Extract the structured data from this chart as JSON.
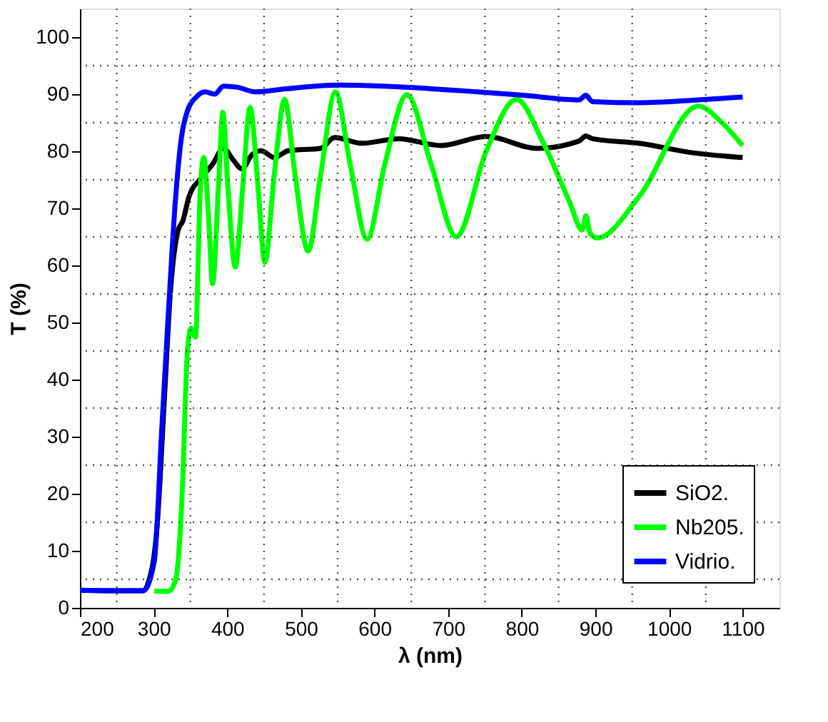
{
  "chart_data": {
    "type": "line",
    "xlabel": "λ (nm)",
    "ylabel": "T (%)",
    "xlim": [
      200,
      1150
    ],
    "ylim": [
      0,
      105
    ],
    "xticks": [
      200,
      300,
      400,
      500,
      600,
      700,
      800,
      900,
      1000,
      1100
    ],
    "yticks": [
      0,
      10,
      20,
      30,
      40,
      50,
      60,
      70,
      80,
      90,
      100
    ],
    "grid": true,
    "legend": "bottom right",
    "line_style": "solid",
    "marker": "none",
    "series": [
      {
        "name": "SiO2.",
        "color": "#000000",
        "x": [
          200,
          250,
          286,
          292,
          305,
          314,
          323,
          333,
          340,
          348,
          364,
          380,
          395,
          408,
          420,
          433,
          446,
          464,
          483,
          527,
          546,
          583,
          633,
          690,
          752,
          821,
          878,
          887,
          896,
          959,
          1034,
          1100
        ],
        "values": [
          3.1,
          3,
          3,
          4.1,
          14.7,
          35,
          55.6,
          66,
          67.9,
          72,
          75.2,
          77.7,
          80.5,
          78.5,
          76.9,
          79.3,
          80.1,
          78.9,
          80.1,
          80.5,
          82.4,
          81.4,
          82.2,
          81,
          82.6,
          80.5,
          81.8,
          82.7,
          82.2,
          81.4,
          79.7,
          78.9
        ]
      },
      {
        "name": "Nb205.",
        "color": "#00ff00",
        "x": [
          301,
          320,
          330,
          339,
          346,
          351,
          357,
          363,
          368,
          375,
          380,
          389,
          394,
          401,
          411,
          421,
          431,
          442,
          451,
          464,
          478,
          492,
          510,
          527,
          547,
          567,
          590,
          614,
          644,
          677,
          711,
          752,
          793,
          828,
          865,
          882,
          887,
          893,
          903,
          959,
          1040,
          1072,
          1100
        ],
        "values": [
          2.9,
          2.9,
          4.9,
          20.4,
          45,
          49,
          47.4,
          72,
          78.9,
          67.9,
          56.8,
          76,
          86.8,
          73.6,
          59.7,
          73.6,
          87.7,
          73.6,
          60.5,
          76,
          89.1,
          76,
          62.5,
          76,
          90.4,
          77.7,
          64.6,
          77.7,
          89.9,
          77.7,
          65,
          80.1,
          89.1,
          81.8,
          71.1,
          66.2,
          68.7,
          65.6,
          64.8,
          72,
          87.9,
          85,
          81
        ]
      },
      {
        "name": "Vidrio.",
        "color": "#0000ff",
        "x": [
          200,
          250,
          286,
          301,
          311,
          320,
          330,
          338,
          345,
          358,
          370,
          383,
          395,
          414,
          439,
          477,
          552,
          646,
          740,
          802,
          878,
          887,
          896,
          959,
          1040,
          1100
        ],
        "values": [
          3.1,
          3,
          3,
          8.2,
          31,
          51.5,
          72,
          82.6,
          86.7,
          89.5,
          90.4,
          90,
          91.4,
          91.2,
          90.4,
          90.9,
          91.6,
          91.2,
          90.4,
          89.8,
          89,
          89.8,
          88.7,
          88.5,
          89,
          89.5
        ]
      }
    ]
  }
}
